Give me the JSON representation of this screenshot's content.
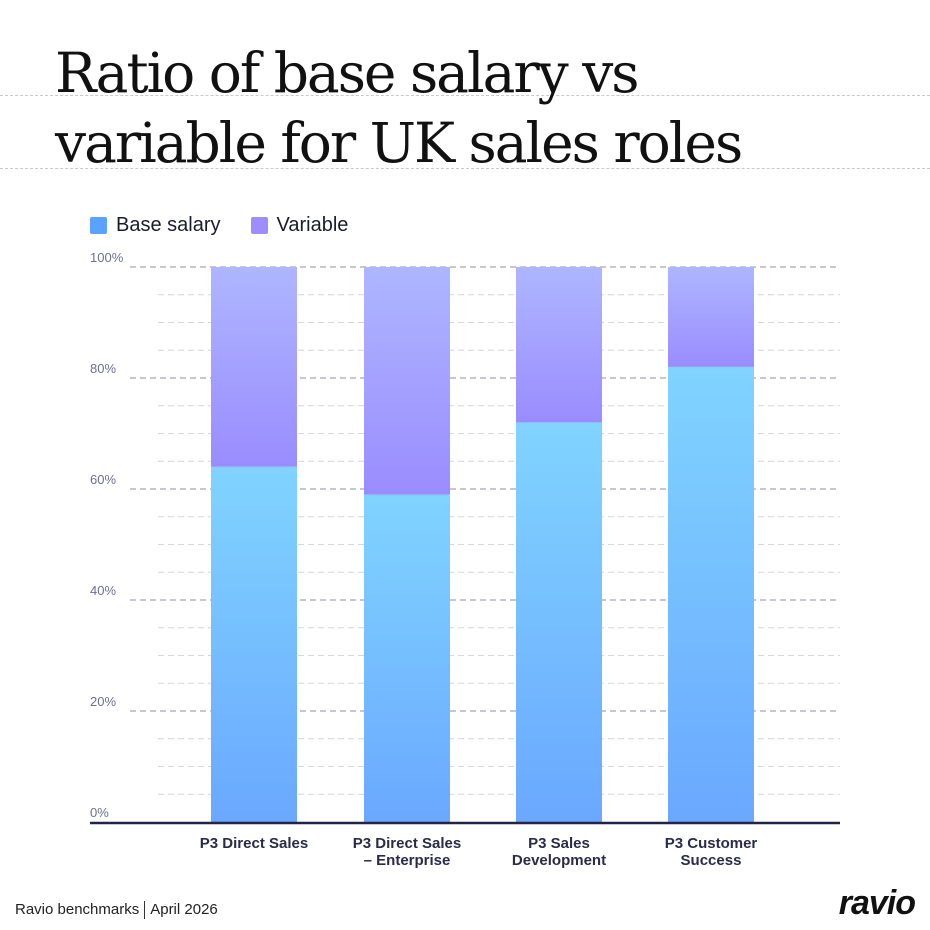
{
  "title_lines": [
    "Ratio of base salary vs",
    "variable for UK sales roles"
  ],
  "legend": [
    {
      "label": "Base salary",
      "color": "#5aa2ff"
    },
    {
      "label": "Variable",
      "color": "#9f8cff"
    }
  ],
  "chart_data": {
    "type": "bar",
    "stacked": true,
    "title": "Ratio of base salary vs variable for UK sales roles",
    "categories": [
      [
        "P3 Direct Sales"
      ],
      [
        "P3 Direct Sales",
        "– Enterprise"
      ],
      [
        "P3 Sales",
        "Development"
      ],
      [
        "P3 Customer",
        "Success"
      ]
    ],
    "series": [
      {
        "name": "Base salary",
        "values": [
          64,
          59,
          72,
          82
        ]
      },
      {
        "name": "Variable",
        "values": [
          36,
          41,
          28,
          18
        ]
      }
    ],
    "ylim": [
      0,
      100
    ],
    "yticks": [
      "0%",
      "20%",
      "40%",
      "60%",
      "80%",
      "100%"
    ],
    "ytick_values": [
      0,
      20,
      40,
      60,
      80,
      100
    ],
    "grid": true,
    "legend_position": "top-left"
  },
  "footer": {
    "source": "Ravio benchmarks",
    "date": "April 2026"
  },
  "logo": "ravio"
}
